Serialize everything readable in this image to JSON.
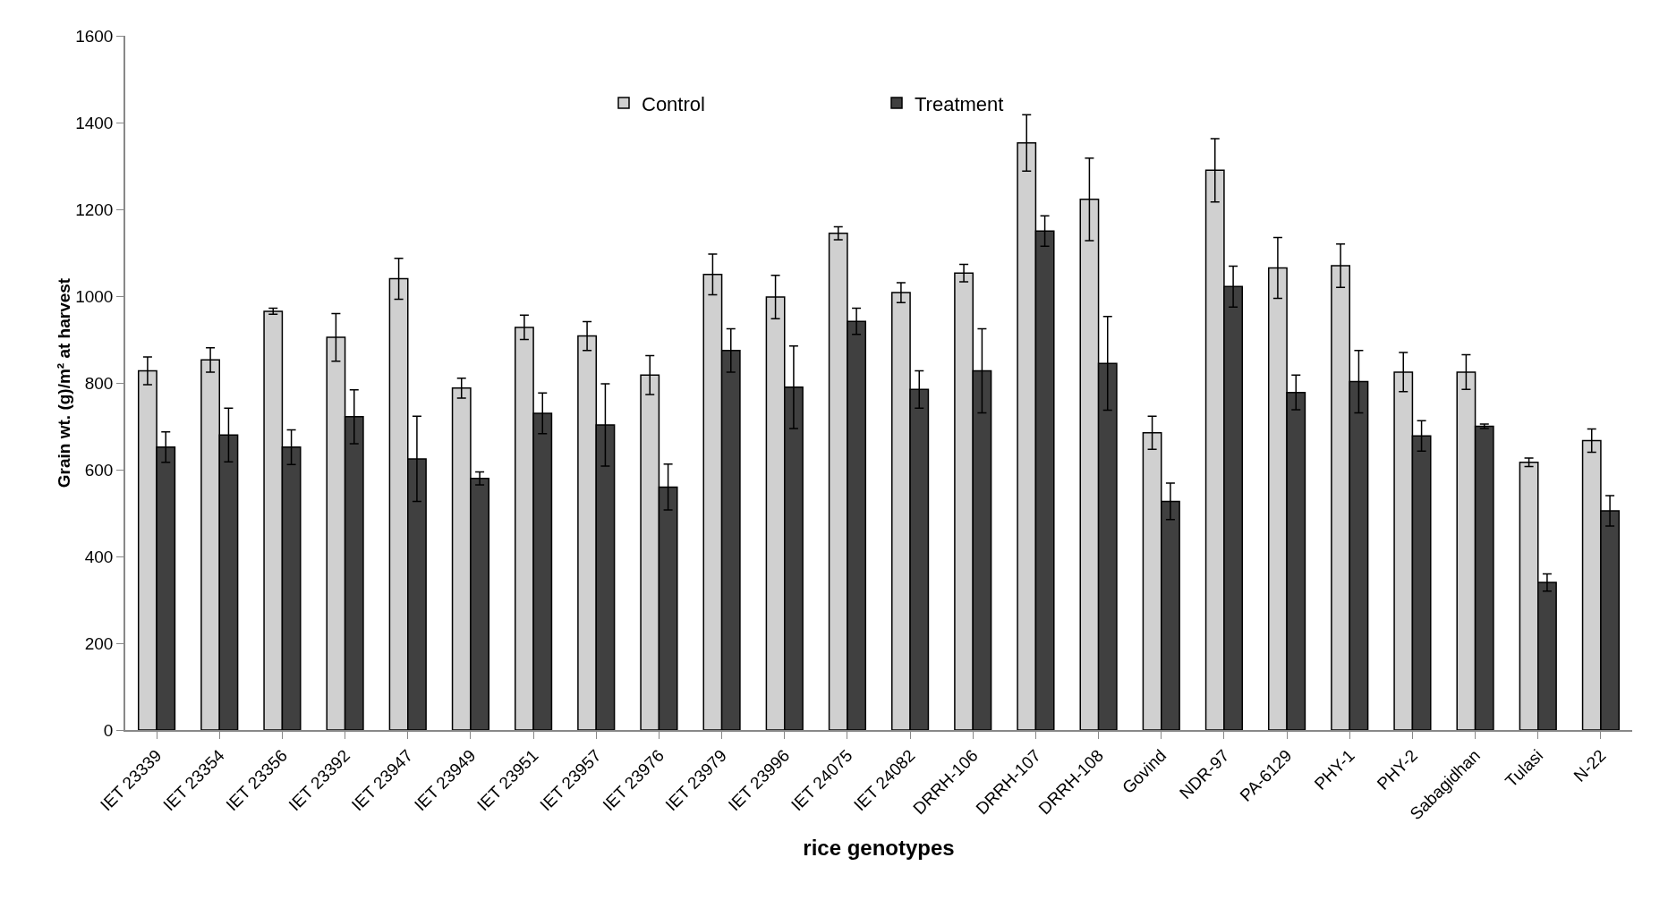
{
  "chart_data": {
    "type": "bar",
    "xlabel": "rice genotypes",
    "ylabel": "Grain wt. (g)/m² at harvest",
    "categories": [
      "IET 23339",
      "IET 23354",
      "IET 23356",
      "IET 23392",
      "IET 23947",
      "IET 23949",
      "IET 23951",
      "IET 23957",
      "IET 23976",
      "IET 23979",
      "IET 23996",
      "IET 24075",
      "IET 24082",
      "DRRH-106",
      "DRRH-107",
      "DRRH-108",
      "Govind",
      "NDR-97",
      "PA-6129",
      "PHY-1",
      "PHY-2",
      "Sabagidhan",
      "Tulasi",
      "N-22"
    ],
    "series": [
      {
        "name": "Control",
        "color": "#d0d0d0",
        "values": [
          828,
          853,
          965,
          905,
          1040,
          788,
          928,
          908,
          818,
          1050,
          998,
          1145,
          1008,
          1053,
          1353,
          1223,
          685,
          1290,
          1065,
          1070,
          825,
          825,
          617,
          667
        ],
        "errors": [
          32,
          28,
          7,
          55,
          47,
          23,
          28,
          33,
          45,
          47,
          50,
          15,
          23,
          20,
          65,
          95,
          38,
          73,
          70,
          50,
          45,
          40,
          10,
          27
        ]
      },
      {
        "name": "Treatment",
        "color": "#404040",
        "values": [
          652,
          680,
          652,
          722,
          625,
          580,
          730,
          703,
          560,
          875,
          790,
          942,
          785,
          828,
          1150,
          845,
          527,
          1022,
          778,
          803,
          678,
          700,
          340,
          505
        ],
        "errors": [
          35,
          62,
          40,
          62,
          98,
          15,
          47,
          95,
          53,
          50,
          95,
          30,
          43,
          97,
          35,
          108,
          42,
          47,
          40,
          72,
          35,
          5,
          20,
          35
        ]
      }
    ],
    "ylim": [
      0,
      1600
    ],
    "yticks": [
      0,
      200,
      400,
      600,
      800,
      1000,
      1200,
      1400,
      1600
    ],
    "grid": false,
    "legend": "top"
  }
}
